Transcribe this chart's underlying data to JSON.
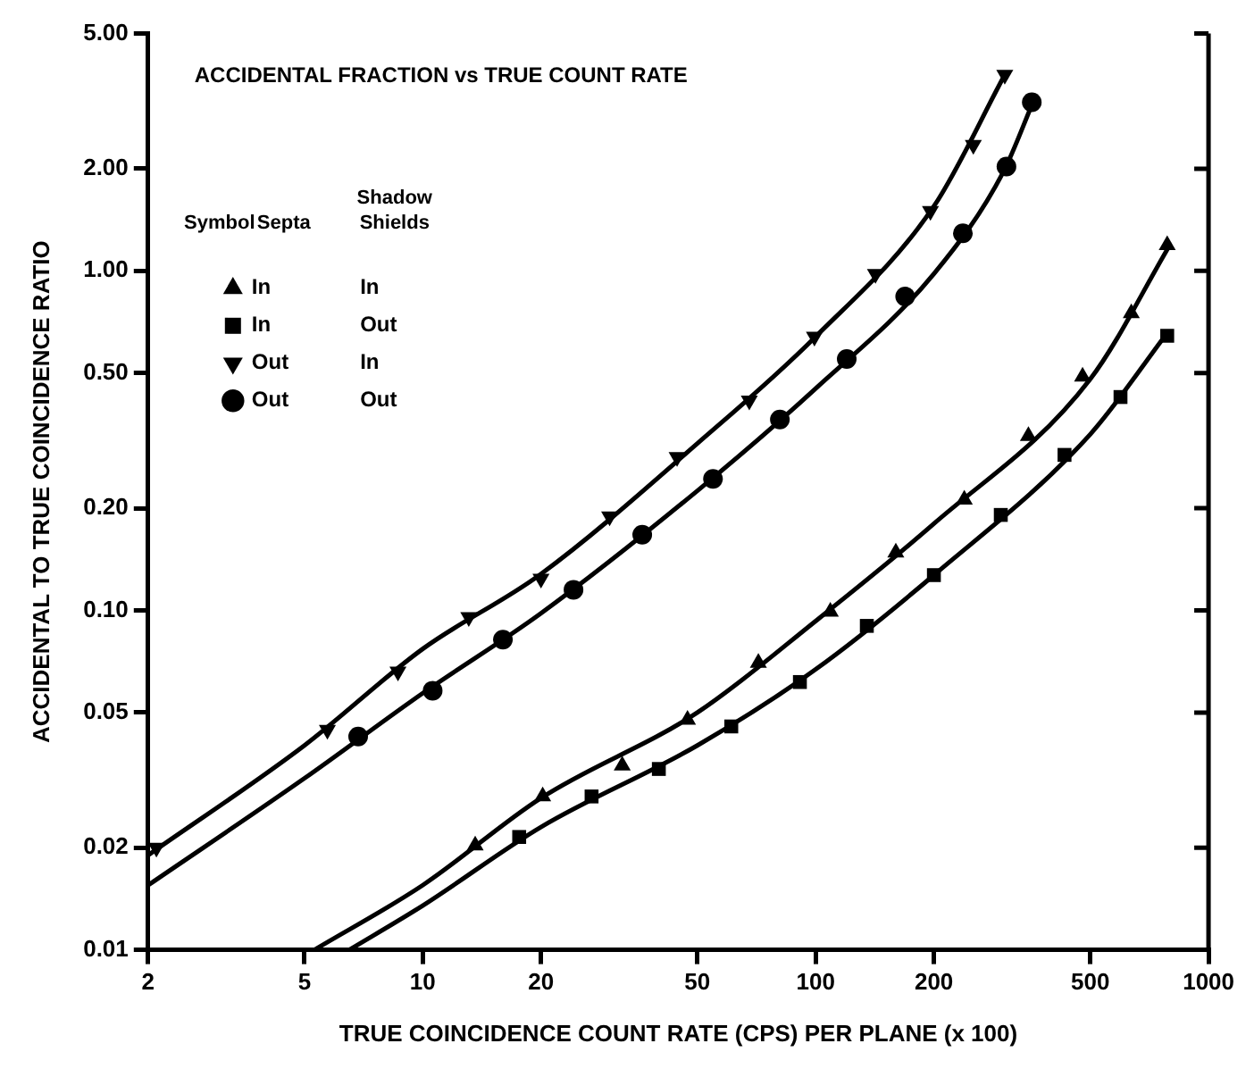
{
  "chart_data": {
    "type": "scatter",
    "title": "ACCIDENTAL FRACTION vs TRUE COUNT RATE",
    "xlabel": "TRUE COINCIDENCE COUNT RATE (CPS) PER PLANE (x 100)",
    "ylabel": "ACCIDENTAL TO TRUE COINCIDENCE RATIO",
    "log": "xy",
    "xlim": [
      2,
      1000
    ],
    "xticks": [
      2,
      5,
      10,
      20,
      50,
      100,
      200,
      500,
      1000
    ],
    "ylim": [
      0.01,
      5
    ],
    "yticks": [
      0.01,
      0.02,
      0.05,
      {
        "value": 0.1,
        "label": "0.10"
      },
      {
        "value": 0.2,
        "label": "0.20"
      },
      {
        "value": 0.5,
        "label": "0.50"
      },
      {
        "value": 1,
        "label": "1.00"
      },
      {
        "value": 2,
        "label": "2.00"
      },
      {
        "value": 5,
        "label": "5.00"
      }
    ],
    "grid": false,
    "legend": "top left",
    "annotations": [
      "Symbol",
      "Septa",
      "Shadow Shields"
    ],
    "series": [
      {
        "name": "In In",
        "type": "scatter",
        "marker": "triangle",
        "color": "#000000",
        "x": [
          13.6,
          20.2,
          32.2,
          47.2,
          71.5,
          109,
          160,
          239,
          348,
          478,
          636,
          785
        ],
        "values": [
          0.0203,
          0.0283,
          0.0349,
          0.0476,
          0.07,
          0.099,
          0.148,
          0.212,
          0.326,
          0.488,
          0.75,
          1.19
        ]
      },
      {
        "name": "In Out",
        "type": "scatter",
        "marker": "square",
        "color": "#000000",
        "x": [
          17.6,
          26.9,
          39.9,
          61,
          91.2,
          135,
          200,
          296,
          430,
          597,
          785
        ],
        "values": [
          0.0215,
          0.0283,
          0.0341,
          0.0455,
          0.0615,
          0.09,
          0.127,
          0.191,
          0.287,
          0.425,
          0.644
        ]
      },
      {
        "name": "Out In",
        "type": "scatter",
        "marker": "triangle-down",
        "color": "#000000",
        "x": [
          2.1,
          5.72,
          8.65,
          13.1,
          20,
          29.9,
          44.4,
          67.8,
          99.3,
          142,
          196,
          252,
          303
        ],
        "values": [
          0.02,
          0.0445,
          0.066,
          0.0955,
          0.124,
          0.189,
          0.283,
          0.415,
          0.64,
          0.98,
          1.5,
          2.35,
          3.78
        ]
      },
      {
        "name": "Out Out",
        "type": "scatter",
        "marker": "circle",
        "color": "#000000",
        "x": [
          6.85,
          10.6,
          16,
          24.2,
          36.2,
          54.8,
          81.1,
          120,
          169,
          237,
          306,
          355
        ],
        "values": [
          0.0425,
          0.058,
          0.082,
          0.115,
          0.167,
          0.244,
          0.365,
          0.55,
          0.84,
          1.29,
          2.03,
          3.14
        ]
      },
      {
        "type": "line",
        "marker": "none",
        "color": "#000000",
        "x": [
          5.3,
          10,
          20,
          50,
          100,
          200,
          500,
          800
        ],
        "values": [
          0.01,
          0.0155,
          0.028,
          0.05,
          0.093,
          0.18,
          0.48,
          1.2
        ]
      },
      {
        "type": "line",
        "marker": "none",
        "color": "#000000",
        "x": [
          6.5,
          10,
          20,
          50,
          100,
          200,
          500,
          780
        ],
        "values": [
          0.01,
          0.0135,
          0.023,
          0.04,
          0.067,
          0.127,
          0.33,
          0.65
        ]
      },
      {
        "type": "line",
        "marker": "none",
        "color": "#000000",
        "x": [
          2,
          5,
          10,
          20,
          50,
          100,
          200,
          300
        ],
        "values": [
          0.019,
          0.04,
          0.077,
          0.128,
          0.31,
          0.64,
          1.55,
          3.7
        ]
      },
      {
        "type": "line",
        "marker": "none",
        "color": "#000000",
        "x": [
          2,
          5,
          10,
          20,
          50,
          100,
          200,
          300,
          360
        ],
        "values": [
          0.0155,
          0.032,
          0.057,
          0.098,
          0.225,
          0.45,
          0.98,
          1.95,
          3.2
        ]
      }
    ]
  }
}
